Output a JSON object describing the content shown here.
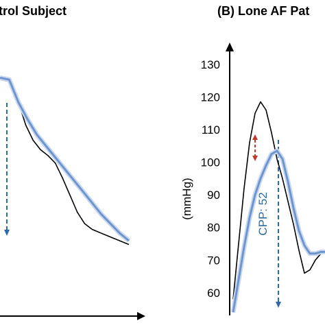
{
  "chart_data": [
    {
      "panel": "A",
      "type": "line",
      "title": "trol Subject",
      "xlabel": "",
      "ylabel": "",
      "grid": false,
      "ylim": [
        50,
        135
      ],
      "series": [
        {
          "color": "#000000",
          "x": [
            0.0,
            0.05,
            0.1,
            0.14,
            0.18,
            0.22,
            0.26,
            0.3,
            0.34,
            0.38,
            0.42,
            0.46,
            0.5,
            0.55,
            0.6,
            0.65,
            0.7
          ],
          "y": [
            114.0,
            113.5,
            108.0,
            102.0,
            98.0,
            95.5,
            94.0,
            92.0,
            88.0,
            83.5,
            79.0,
            76.0,
            74.5,
            73.5,
            72.5,
            71.5,
            70.5
          ]
        },
        {
          "color": "#6f95cf",
          "x": [
            0.0,
            0.05,
            0.1,
            0.15,
            0.2,
            0.25,
            0.3,
            0.35,
            0.4,
            0.45,
            0.5,
            0.55,
            0.6,
            0.65,
            0.7
          ],
          "y": [
            114.5,
            114.0,
            108.0,
            103.5,
            99.5,
            96.5,
            93.5,
            90.5,
            87.5,
            84.5,
            81.5,
            78.5,
            76.0,
            73.5,
            71.5
          ]
        }
      ]
    },
    {
      "panel": "B",
      "type": "line",
      "title": "(B) Lone AF Pat",
      "xlabel": "",
      "ylabel": "(mmHg)",
      "grid": false,
      "ylim": [
        52,
        135
      ],
      "yticks": [
        "130",
        "120",
        "110",
        "100",
        "90",
        "80",
        "70",
        "60"
      ],
      "series": [
        {
          "color": "#000000",
          "x": [
            0.0,
            0.03,
            0.06,
            0.09,
            0.12,
            0.15,
            0.18,
            0.21,
            0.24,
            0.27,
            0.3,
            0.33,
            0.36,
            0.39,
            0.42,
            0.45,
            0.48,
            0.51
          ],
          "y": [
            58.0,
            75.0,
            92.0,
            106.0,
            115.0,
            118.5,
            116.0,
            109.0,
            101.0,
            95.0,
            88.0,
            81.0,
            73.0,
            66.0,
            67.0,
            70.0,
            72.0,
            73.0
          ]
        },
        {
          "color": "#6f95cf",
          "x": [
            0.0,
            0.03,
            0.06,
            0.09,
            0.12,
            0.15,
            0.18,
            0.21,
            0.24,
            0.27,
            0.3,
            0.33,
            0.36,
            0.39,
            0.42,
            0.45,
            0.48,
            0.51
          ],
          "y": [
            54.0,
            64.0,
            74.0,
            83.0,
            90.0,
            95.0,
            99.0,
            102.5,
            103.5,
            101.0,
            94.0,
            86.0,
            79.0,
            74.5,
            72.0,
            72.0,
            72.5,
            72.5
          ]
        }
      ],
      "annotations": [
        {
          "text": "CPP: 52",
          "color": "#2e6aa8"
        }
      ]
    }
  ]
}
